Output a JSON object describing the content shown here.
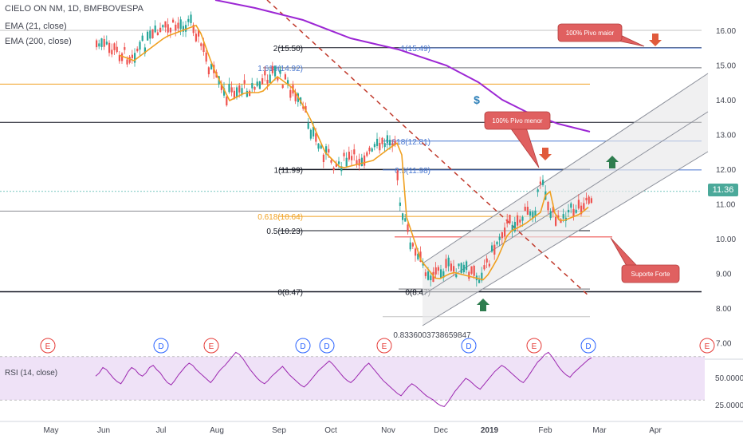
{
  "header": {
    "symbol_line": "CIELO ON NM, 1D, BMFBOVESPA",
    "ema21_label": "EMA (21, close)",
    "ema200_label": "EMA (200, close)"
  },
  "last_price": "11.36",
  "colors": {
    "up": "#26a69a",
    "down": "#ef5350",
    "ema21": "#f0a020",
    "ema200": "#9c27d4",
    "fib_blue": "#4a78d0",
    "fib_orange": "#f0a020",
    "support": "#ef5350",
    "callout_bg": "#e06060",
    "rsi_line": "#9c27b0",
    "rsi_band": "#efe2f7"
  },
  "chart_data": {
    "type": "candlestick",
    "x_axis_labels": [
      "May",
      "Jun",
      "Jul",
      "Aug",
      "Sep",
      "Oct",
      "Nov",
      "Dec",
      "2019",
      "Feb",
      "Mar",
      "Apr"
    ],
    "y_axis_labels": [
      "16.00",
      "15.00",
      "14.00",
      "13.00",
      "12.00",
      "11.00",
      "10.00",
      "9.00",
      "8.00",
      "7.00"
    ],
    "ylim": [
      7.0,
      16.5
    ],
    "last_price": 11.36,
    "fib_left": [
      {
        "label": "2(15.50)",
        "value": 15.5
      },
      {
        "label": "1.618(14.92)",
        "value": 14.92
      },
      {
        "label": "1(11.99)",
        "value": 11.99
      },
      {
        "label": "0.618(10.64)",
        "value": 10.64
      },
      {
        "label": "0.5(10.23)",
        "value": 10.23
      },
      {
        "label": "0(8.47)",
        "value": 8.47
      }
    ],
    "fib_right": [
      {
        "label": "1(15.49)",
        "value": 15.49
      },
      {
        "label": "1.618(12.81)",
        "value": 12.81
      },
      {
        "label": "0.5(11.98)",
        "value": 11.98
      },
      {
        "label": "0(8.47)",
        "value": 8.47
      }
    ],
    "annotations": {
      "pivo_maior": "100% Pivo maior",
      "pivo_menor": "100% Pivo menor",
      "suporte_forte": "Suporte Forte",
      "measure_value": "0.8336003738659847",
      "dollar_marker": "$"
    },
    "events": [
      "E",
      "D",
      "E",
      "D",
      "D",
      "E",
      "D",
      "E",
      "D",
      "E"
    ],
    "rsi": {
      "label": "RSI (14, close)",
      "levels": [
        70,
        30
      ],
      "axis_labels": [
        "50.0000",
        "25.0000"
      ],
      "values": [
        52,
        55,
        60,
        58,
        54,
        50,
        47,
        45,
        50,
        56,
        60,
        58,
        54,
        52,
        55,
        60,
        62,
        58,
        55,
        50,
        46,
        44,
        48,
        53,
        57,
        61,
        64,
        62,
        58,
        55,
        52,
        49,
        46,
        50,
        55,
        59,
        62,
        66,
        70,
        74,
        72,
        68,
        63,
        58,
        54,
        50,
        47,
        45,
        48,
        52,
        55,
        58,
        61,
        57,
        53,
        50,
        47,
        44,
        42,
        45,
        49,
        53,
        57,
        60,
        63,
        66,
        63,
        59,
        55,
        51,
        48,
        46,
        49,
        53,
        57,
        61,
        64,
        60,
        56,
        52,
        48,
        45,
        42,
        39,
        36,
        34,
        38,
        42,
        45,
        43,
        40,
        37,
        34,
        32,
        30,
        27,
        25,
        24,
        28,
        33,
        38,
        42,
        46,
        50,
        48,
        45,
        42,
        40,
        44,
        48,
        52,
        56,
        59,
        62,
        60,
        57,
        54,
        51,
        48,
        46,
        50,
        55,
        60,
        65,
        68,
        72,
        74,
        70,
        65,
        60,
        56,
        53,
        51,
        55,
        58,
        61,
        64,
        67,
        69
      ]
    }
  }
}
